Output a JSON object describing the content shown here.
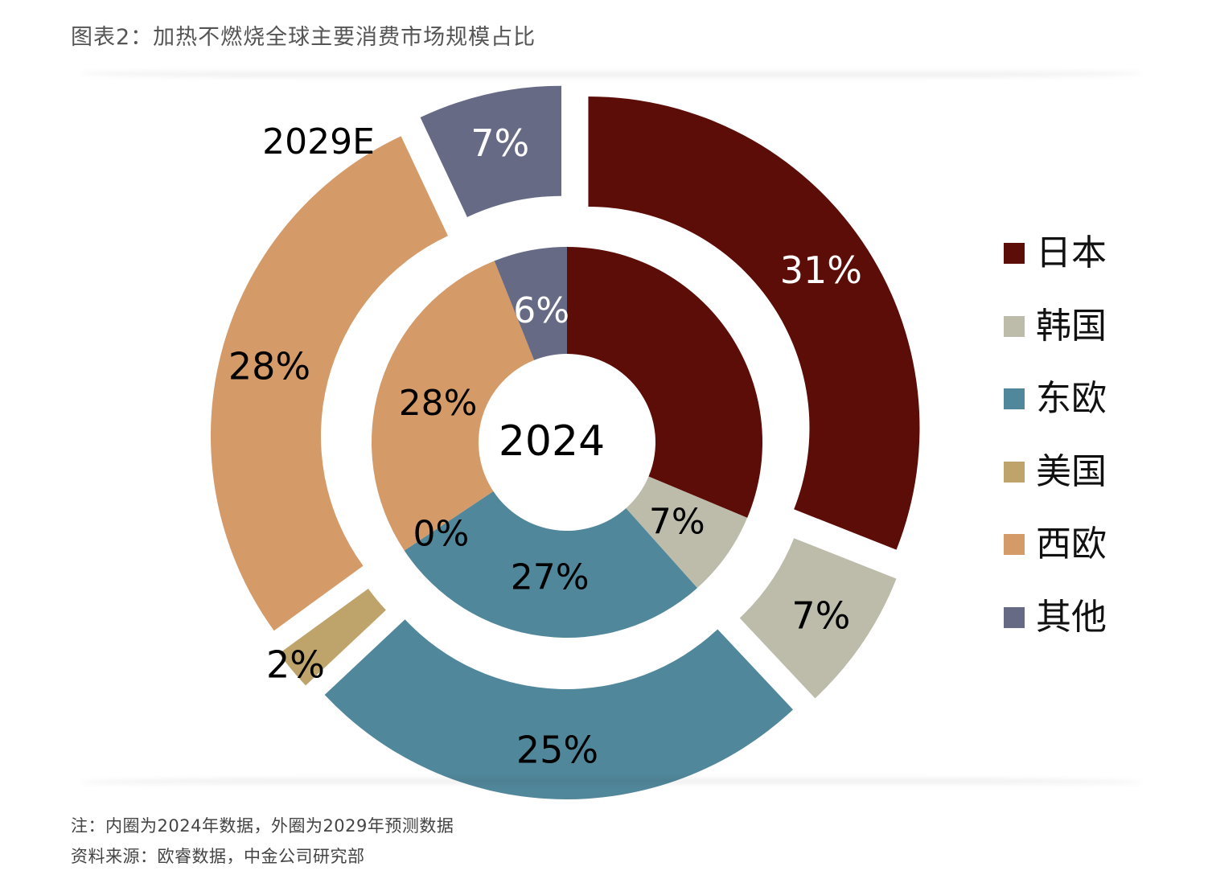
{
  "title": "图表2：加热不燃烧全球主要消费市场规模占比",
  "footnotes": {
    "note": "注：内圈为2024年数据，外圈为2029年预测数据",
    "source": "资料来源：欧睿数据，中金公司研究部"
  },
  "chart_data": {
    "type": "pie",
    "subtype": "nested-donut",
    "title": "加热不燃烧全球主要消费市场规模占比",
    "categories": [
      "日本",
      "韩国",
      "东欧",
      "美国",
      "西欧",
      "其他"
    ],
    "colors": [
      "#5c0d08",
      "#bdbcab",
      "#51879a",
      "#bea46a",
      "#d49a68",
      "#676a85"
    ],
    "series": [
      {
        "name": "2024",
        "ring": "inner",
        "values": [
          31,
          7,
          27,
          0,
          28,
          6
        ],
        "labels": [
          "",
          "7%",
          "27%",
          "0%",
          "28%",
          "6%"
        ],
        "center_label": "2024"
      },
      {
        "name": "2029E",
        "ring": "outer",
        "values": [
          31,
          7,
          25,
          2,
          28,
          7
        ],
        "labels": [
          "31%",
          "7%",
          "25%",
          "2%",
          "28%",
          "7%"
        ],
        "ring_label": "2029E"
      }
    ],
    "legend_position": "right",
    "unit": "%"
  }
}
